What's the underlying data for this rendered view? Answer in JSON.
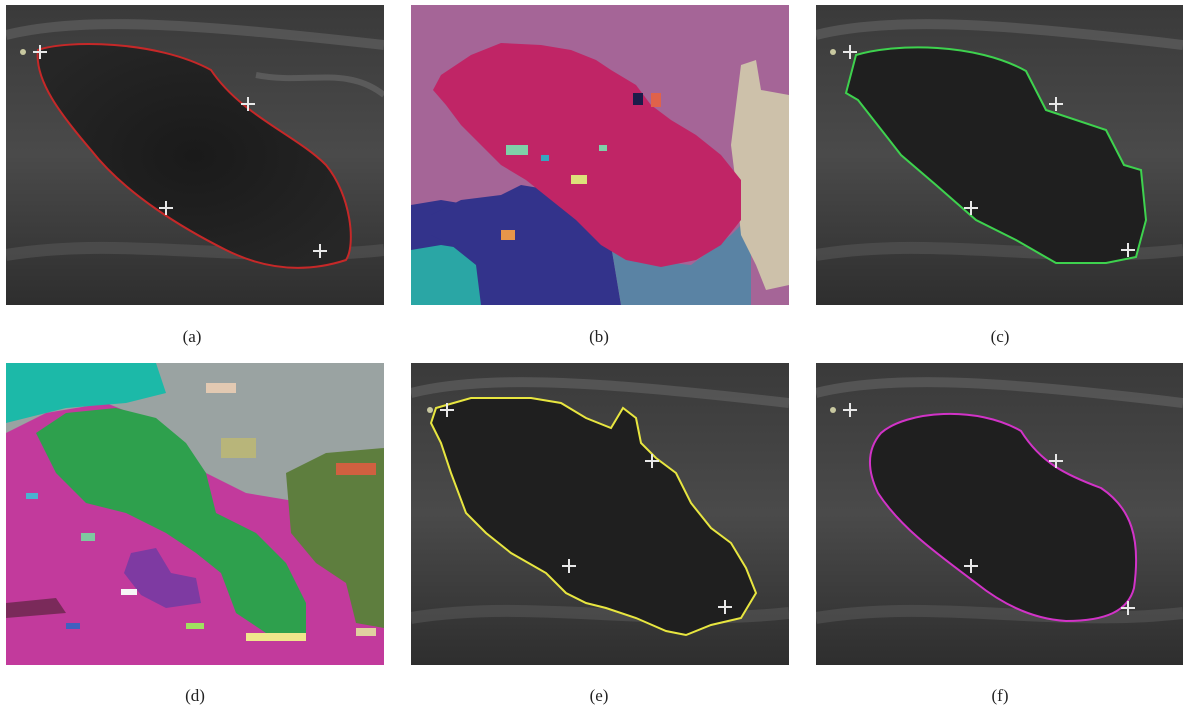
{
  "figure": {
    "panels": [
      {
        "id": "a",
        "caption": "(a)",
        "kind": "ultrasound",
        "contour_color": "#c62828",
        "contour_style": "smooth"
      },
      {
        "id": "b",
        "caption": "(b)",
        "kind": "segmentation-map",
        "region_colors": [
          "#a56597",
          "#c02566",
          "#33338b",
          "#2aa6a5",
          "#5a83a4",
          "#cdc1aa"
        ]
      },
      {
        "id": "c",
        "caption": "(c)",
        "kind": "ultrasound",
        "contour_color": "#3ed24e",
        "contour_style": "angular"
      },
      {
        "id": "d",
        "caption": "(d)",
        "kind": "segmentation-map",
        "region_colors": [
          "#c23a9c",
          "#2ea04d",
          "#9aa3a2",
          "#1cb9a8",
          "#5e7e3e",
          "#7e3aa2"
        ]
      },
      {
        "id": "e",
        "caption": "(e)",
        "kind": "ultrasound",
        "contour_color": "#e8e640",
        "contour_style": "jagged"
      },
      {
        "id": "f",
        "caption": "(f)",
        "kind": "ultrasound",
        "contour_color": "#d233c8",
        "contour_style": "smooth"
      }
    ]
  }
}
